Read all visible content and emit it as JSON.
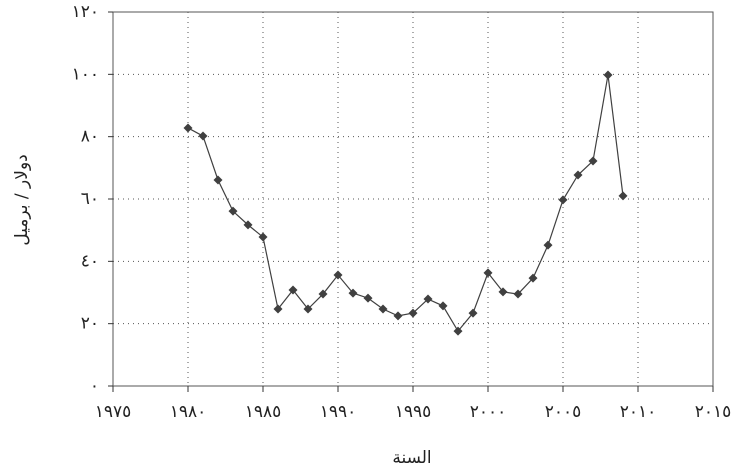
{
  "chart_data": {
    "type": "line",
    "xlabel": "السنة",
    "ylabel": "دولار / برميل",
    "x": [
      1980,
      1981,
      1982,
      1983,
      1984,
      1985,
      1986,
      1987,
      1988,
      1989,
      1990,
      1991,
      1992,
      1993,
      1994,
      1995,
      1996,
      1997,
      1998,
      1999,
      2000,
      2001,
      2002,
      2003,
      2004,
      2005,
      2006,
      2007,
      2008,
      2009
    ],
    "series": [
      {
        "color": "#404040",
        "values": [
          82.8,
          80.2,
          66.1,
          56.1,
          51.7,
          47.8,
          24.7,
          30.8,
          24.7,
          29.5,
          35.6,
          29.8,
          28.2,
          24.7,
          22.5,
          23.4,
          27.9,
          25.7,
          17.6,
          23.4,
          36.3,
          30.2,
          29.5,
          34.6,
          45.2,
          59.7,
          67.7,
          72.2,
          99.8,
          61.0
        ]
      }
    ],
    "xlim": [
      1975,
      2015
    ],
    "xticks": [
      {
        "value": 1975,
        "label": "١٩٧٥"
      },
      {
        "value": 1980,
        "label": "١٩٨٠"
      },
      {
        "value": 1985,
        "label": "١٩٨٥"
      },
      {
        "value": 1990,
        "label": "١٩٩٠"
      },
      {
        "value": 1995,
        "label": "١٩٩٥"
      },
      {
        "value": 2000,
        "label": "٢٠٠٠"
      },
      {
        "value": 2005,
        "label": "٢٠٠٥"
      },
      {
        "value": 2010,
        "label": "٢٠١٠"
      },
      {
        "value": 2015,
        "label": "٢٠١٥"
      }
    ],
    "ylim": [
      0,
      120
    ],
    "yticks": [
      {
        "value": 0,
        "label": "٠"
      },
      {
        "value": 20,
        "label": "٢٠"
      },
      {
        "value": 40,
        "label": "٤٠"
      },
      {
        "value": 60,
        "label": "٦٠"
      },
      {
        "value": 80,
        "label": "٨٠"
      },
      {
        "value": 100,
        "label": "١٠٠"
      },
      {
        "value": 120,
        "label": "١٢٠"
      }
    ],
    "grid": true
  }
}
